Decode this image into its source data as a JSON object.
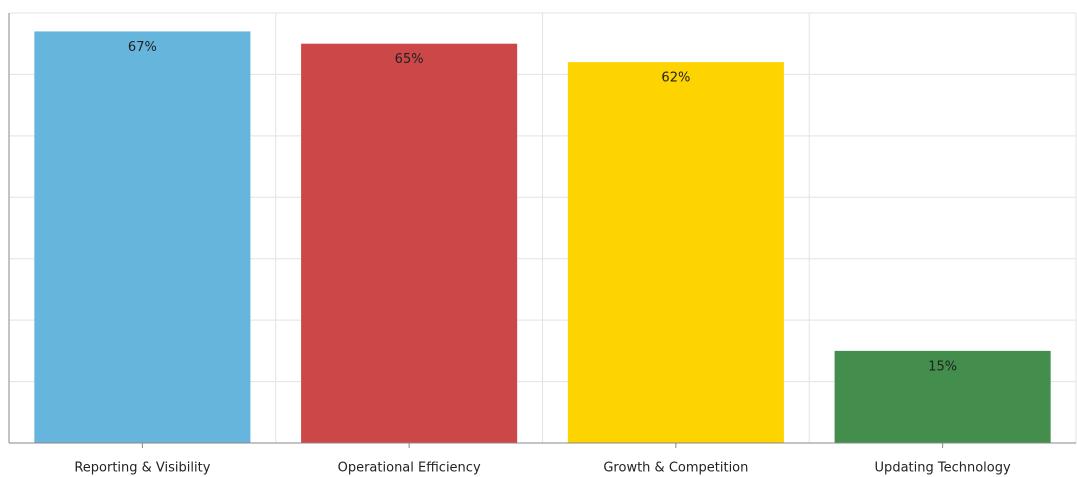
{
  "chart_data": {
    "type": "bar",
    "categories": [
      "Reporting & Visibility",
      "Operational Efficiency",
      "Growth & Competition",
      "Updating Technology"
    ],
    "values": [
      67,
      65,
      62,
      15
    ],
    "value_labels": [
      "67%",
      "65%",
      "62%",
      "15%"
    ],
    "colors": [
      "#66b5dc",
      "#cc4748",
      "#fdd400",
      "#448e4d"
    ],
    "ylim": [
      0,
      70
    ],
    "yticks": [
      0,
      10,
      20,
      30,
      40,
      50,
      60,
      70
    ],
    "grid": true
  }
}
